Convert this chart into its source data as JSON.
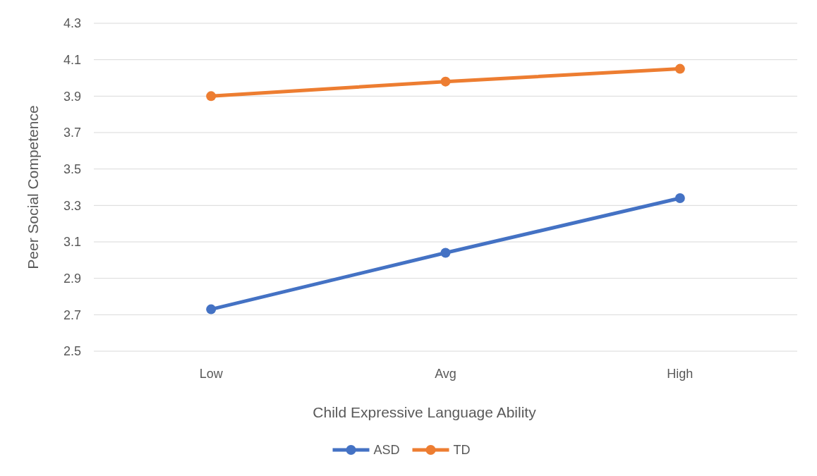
{
  "chart_data": {
    "type": "line",
    "xlabel": "Child Expressive Language Ability",
    "ylabel": "Peer Social Competence",
    "categories": [
      "Low",
      "Avg",
      "High"
    ],
    "series": [
      {
        "name": "ASD",
        "color": "#4472c4",
        "values": [
          2.73,
          3.04,
          3.34
        ]
      },
      {
        "name": "TD",
        "color": "#ed7d31",
        "values": [
          3.9,
          3.98,
          4.05
        ]
      }
    ],
    "ylim": [
      2.5,
      4.3
    ],
    "yticks": [
      {
        "value": 2.5,
        "label": "2.5"
      },
      {
        "value": 2.7,
        "label": "2.7"
      },
      {
        "value": 2.9,
        "label": "2.9"
      },
      {
        "value": 3.1,
        "label": "3.1"
      },
      {
        "value": 3.3,
        "label": "3.3"
      },
      {
        "value": 3.5,
        "label": "3.5"
      },
      {
        "value": 3.7,
        "label": "3.7"
      },
      {
        "value": 3.9,
        "label": "3.9"
      },
      {
        "value": 4.1,
        "label": "4.1"
      },
      {
        "value": 4.3,
        "label": "4.3"
      }
    ],
    "grid": "y",
    "legend": "bottom",
    "marker": "circle",
    "line_style": "solid"
  }
}
